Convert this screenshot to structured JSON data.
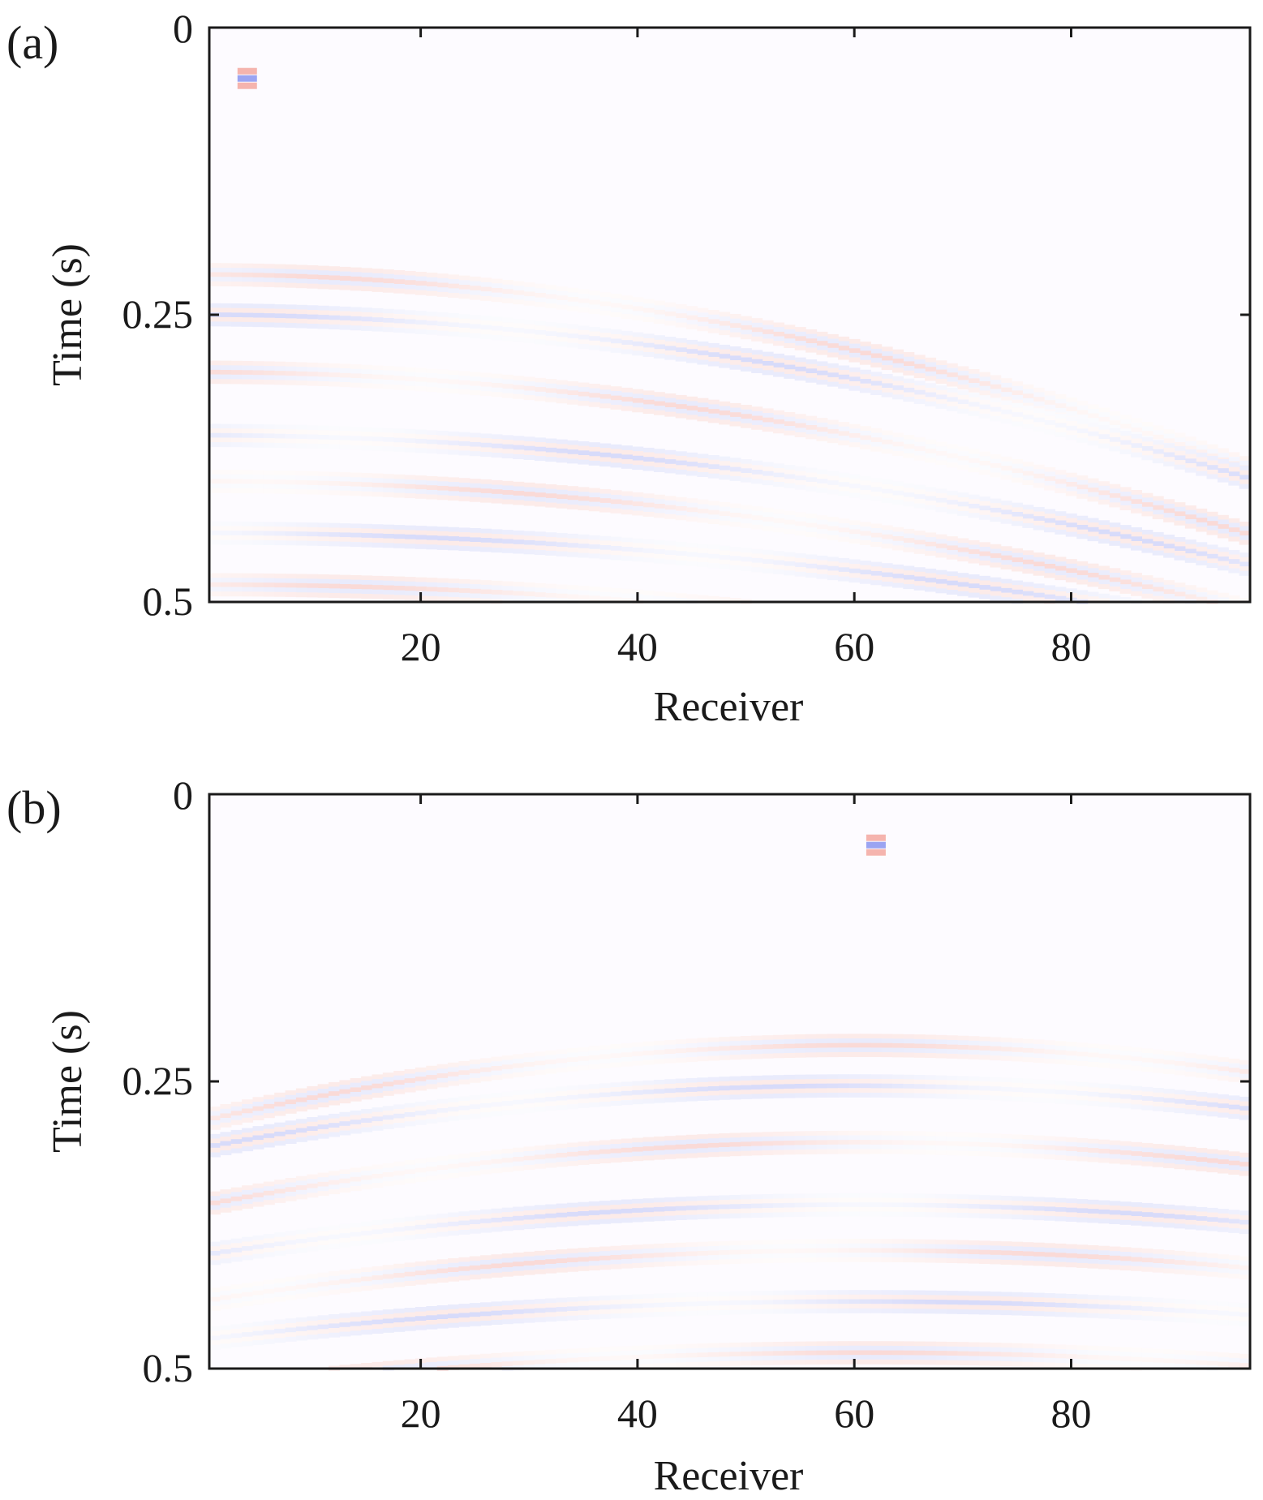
{
  "chart_data": [
    {
      "type": "heatmap",
      "panel_label": "(a)",
      "xlabel": "Receiver",
      "ylabel": "Time (s)",
      "xlim": [
        1,
        96
      ],
      "ylim": [
        0,
        0.5
      ],
      "y_reversed": true,
      "xticks": [
        20,
        40,
        60,
        80
      ],
      "yticks": [
        0,
        0.25,
        0.5
      ],
      "xtick_labels": [
        "20",
        "40",
        "60",
        "80"
      ],
      "ytick_labels": [
        "0",
        "0.25",
        "0.5"
      ],
      "colormap": {
        "positive": "#e8584a",
        "neutral": "#ffffff",
        "negative": "#4a5ae8"
      },
      "source_receiver": 4,
      "source_time": 0.045,
      "events": [
        {
          "t0": 0.215,
          "curvature": 6e-05,
          "slope": 0.0003,
          "polarity": 1
        },
        {
          "t0": 0.25,
          "curvature": 5e-05,
          "slope": 0.00032,
          "polarity": -1
        },
        {
          "t0": 0.3,
          "curvature": 5e-05,
          "slope": 0.00025,
          "polarity": 1
        },
        {
          "t0": 0.355,
          "curvature": 4e-05,
          "slope": 0.0002,
          "polarity": -1
        },
        {
          "t0": 0.395,
          "curvature": 4e-05,
          "slope": 0.00018,
          "polarity": 1
        },
        {
          "t0": 0.44,
          "curvature": 3e-05,
          "slope": 0.00014,
          "polarity": -1
        },
        {
          "t0": 0.485,
          "curvature": 3e-05,
          "slope": 0.0001,
          "polarity": 1
        }
      ]
    },
    {
      "type": "heatmap",
      "panel_label": "(b)",
      "xlabel": "Receiver",
      "ylabel": "Time (s)",
      "xlim": [
        1,
        96
      ],
      "ylim": [
        0,
        0.5
      ],
      "y_reversed": true,
      "xticks": [
        20,
        40,
        60,
        80
      ],
      "yticks": [
        0,
        0.25,
        0.5
      ],
      "xtick_labels": [
        "20",
        "40",
        "60",
        "80"
      ],
      "ytick_labels": [
        "0",
        "0.25",
        "0.5"
      ],
      "colormap": {
        "positive": "#e8584a",
        "neutral": "#ffffff",
        "negative": "#4a5ae8"
      },
      "source_receiver": 62,
      "source_time": 0.045,
      "events": [
        {
          "t0": 0.215,
          "curvature": 6e-05,
          "slope": 0.0003,
          "polarity": 1
        },
        {
          "t0": 0.25,
          "curvature": 5e-05,
          "slope": 0.00032,
          "polarity": -1
        },
        {
          "t0": 0.3,
          "curvature": 5e-05,
          "slope": 0.00025,
          "polarity": 1
        },
        {
          "t0": 0.355,
          "curvature": 4e-05,
          "slope": 0.0002,
          "polarity": -1
        },
        {
          "t0": 0.395,
          "curvature": 4e-05,
          "slope": 0.00018,
          "polarity": 1
        },
        {
          "t0": 0.44,
          "curvature": 3e-05,
          "slope": 0.00014,
          "polarity": -1
        },
        {
          "t0": 0.485,
          "curvature": 3e-05,
          "slope": 0.0001,
          "polarity": 1
        }
      ]
    }
  ]
}
